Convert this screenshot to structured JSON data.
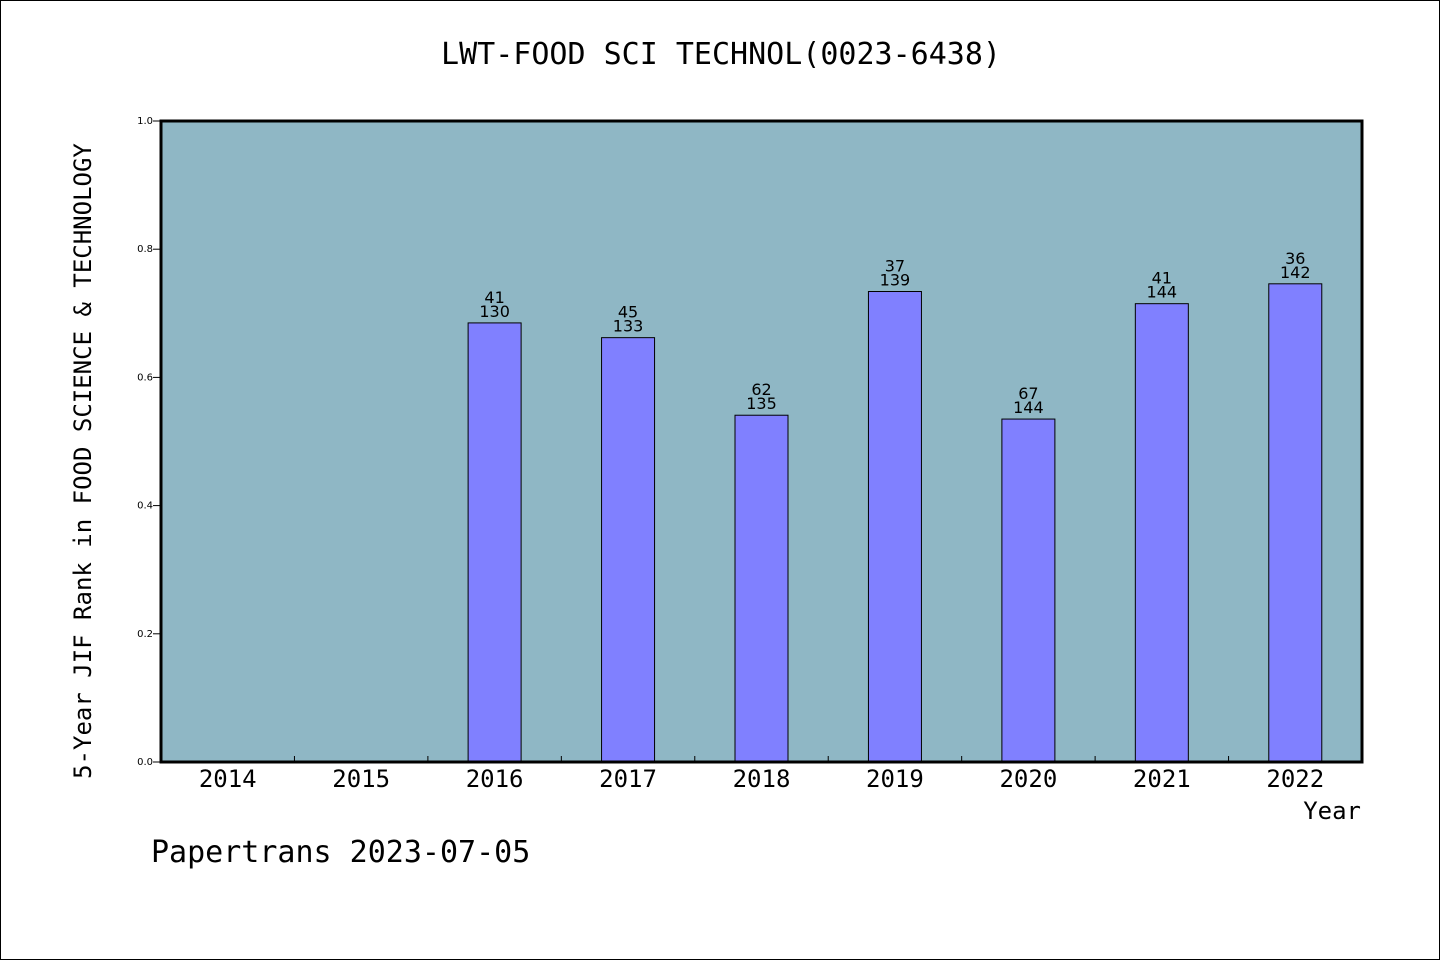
{
  "chart_data": {
    "type": "bar",
    "title": "LWT-FOOD SCI TECHNOL(0023-6438)",
    "xlabel": "Year",
    "ylabel": "5-Year JIF Rank in FOOD SCIENCE & TECHNOLOGY",
    "ylim": [
      0,
      1.0
    ],
    "yticks": [
      "0.0",
      "0.2",
      "0.4",
      "0.6",
      "0.8",
      "1.0"
    ],
    "categories": [
      "2014",
      "2015",
      "2016",
      "2017",
      "2018",
      "2019",
      "2020",
      "2021",
      "2022"
    ],
    "values": [
      null,
      null,
      0.685,
      0.662,
      0.541,
      0.734,
      0.535,
      0.715,
      0.746
    ],
    "rank": [
      null,
      null,
      "41",
      "45",
      "62",
      "37",
      "67",
      "41",
      "36"
    ],
    "total": [
      null,
      null,
      "130",
      "133",
      "135",
      "139",
      "144",
      "144",
      "142"
    ],
    "grid": false,
    "legend": "none",
    "colors": {
      "plot_background": "#8fb7c5",
      "bar_fill": "#8080ff",
      "bar_stroke": "#000000"
    }
  },
  "footer": {
    "text": "Papertrans 2023-07-05"
  }
}
